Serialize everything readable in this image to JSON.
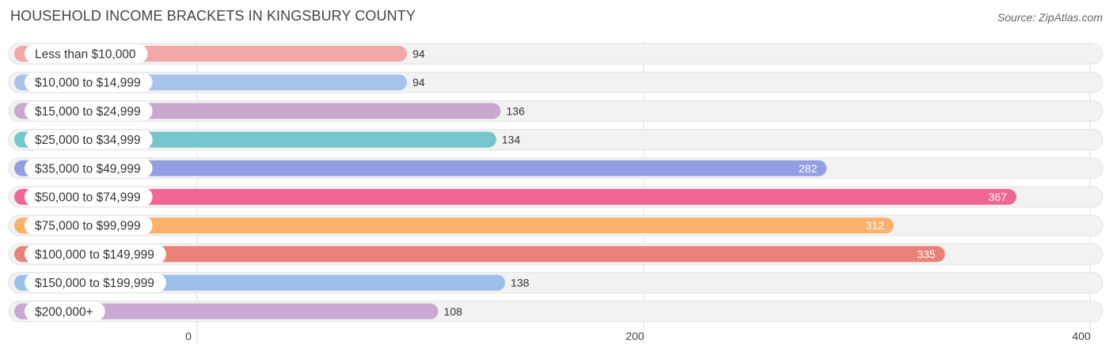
{
  "chart_data": {
    "type": "bar",
    "orientation": "horizontal",
    "title": "HOUSEHOLD INCOME BRACKETS IN KINGSBURY COUNTY",
    "source": "Source: ZipAtlas.com",
    "categories": [
      "Less than $10,000",
      "$10,000 to $14,999",
      "$15,000 to $24,999",
      "$25,000 to $34,999",
      "$35,000 to $49,999",
      "$50,000 to $74,999",
      "$75,000 to $99,999",
      "$100,000 to $149,999",
      "$150,000 to $199,999",
      "$200,000+"
    ],
    "values": [
      94,
      94,
      136,
      134,
      282,
      367,
      312,
      335,
      138,
      108
    ],
    "value_labels": [
      "94",
      "94",
      "136",
      "134",
      "282",
      "367",
      "312",
      "335",
      "138",
      "108"
    ],
    "colors": [
      "#f2a8a8",
      "#a8c4ec",
      "#c9a8d0",
      "#74c6cc",
      "#939fe2",
      "#f06794",
      "#f9b16b",
      "#ea8077",
      "#9bbfe8",
      "#c9a9d2"
    ],
    "xlim": [
      0,
      400
    ],
    "xticks": [
      0,
      200,
      400
    ],
    "xtick_labels": [
      "0",
      "200",
      "400"
    ],
    "grid": true,
    "xlabel": "",
    "ylabel": ""
  }
}
